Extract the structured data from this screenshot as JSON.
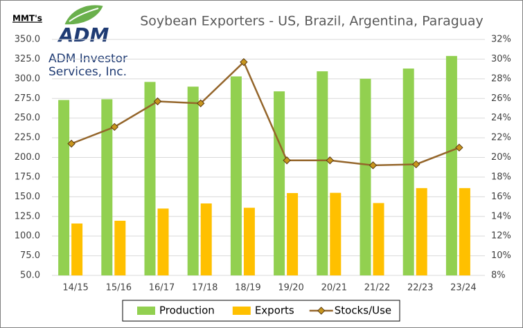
{
  "logo": {
    "text": "ADM",
    "caption": [
      "ADM Investor",
      "Services, Inc."
    ]
  },
  "chart_data": {
    "type": "bar",
    "title": "Soybean Exporters - US, Brazil, Argentina, Paraguay",
    "y_label": "MMT's",
    "categories": [
      "14/15",
      "15/16",
      "16/17",
      "17/18",
      "18/19",
      "19/20",
      "20/21",
      "21/22",
      "22/23",
      "23/24"
    ],
    "series": [
      {
        "name": "Production",
        "type": "bar",
        "color": "#92d050",
        "values": [
          273,
          274,
          296,
          290,
          303,
          284,
          309.5,
          300,
          313,
          329
        ]
      },
      {
        "name": "Exports",
        "type": "bar",
        "color": "#ffc000",
        "values": [
          116,
          119.5,
          135,
          141.5,
          136,
          154.7,
          155,
          142,
          161,
          161
        ]
      },
      {
        "name": "Stocks/Use",
        "type": "line",
        "axis": "y2",
        "color": "#94652a",
        "marker_color": "#c8961e",
        "values": [
          21.4,
          23.1,
          25.7,
          25.5,
          29.7,
          19.7,
          19.7,
          19.2,
          19.3,
          21.0
        ]
      }
    ],
    "ylim": [
      50,
      350
    ],
    "yticks": [
      {
        "value": 50,
        "label": "50.0"
      },
      {
        "value": 75,
        "label": "75.0"
      },
      {
        "value": 100,
        "label": "100.0"
      },
      {
        "value": 125,
        "label": "125.0"
      },
      {
        "value": 150,
        "label": "150.0"
      },
      {
        "value": 175,
        "label": "175.0"
      },
      {
        "value": 200,
        "label": "200.0"
      },
      {
        "value": 225,
        "label": "225.0"
      },
      {
        "value": 250,
        "label": "250.0"
      },
      {
        "value": 275,
        "label": "275.0"
      },
      {
        "value": 300,
        "label": "300.0"
      },
      {
        "value": 325,
        "label": "325.0"
      },
      {
        "value": 350,
        "label": "350.0"
      }
    ],
    "y2lim": [
      8,
      32
    ],
    "y2ticks": [
      {
        "value": 8,
        "label": "8%"
      },
      {
        "value": 10,
        "label": "10%"
      },
      {
        "value": 12,
        "label": "12%"
      },
      {
        "value": 14,
        "label": "14%"
      },
      {
        "value": 16,
        "label": "16%"
      },
      {
        "value": 18,
        "label": "18%"
      },
      {
        "value": 20,
        "label": "20%"
      },
      {
        "value": 22,
        "label": "22%"
      },
      {
        "value": 24,
        "label": "24%"
      },
      {
        "value": 26,
        "label": "26%"
      },
      {
        "value": 28,
        "label": "28%"
      },
      {
        "value": 30,
        "label": "30%"
      },
      {
        "value": 32,
        "label": "32%"
      }
    ],
    "grid": true,
    "legend": "bottom"
  }
}
